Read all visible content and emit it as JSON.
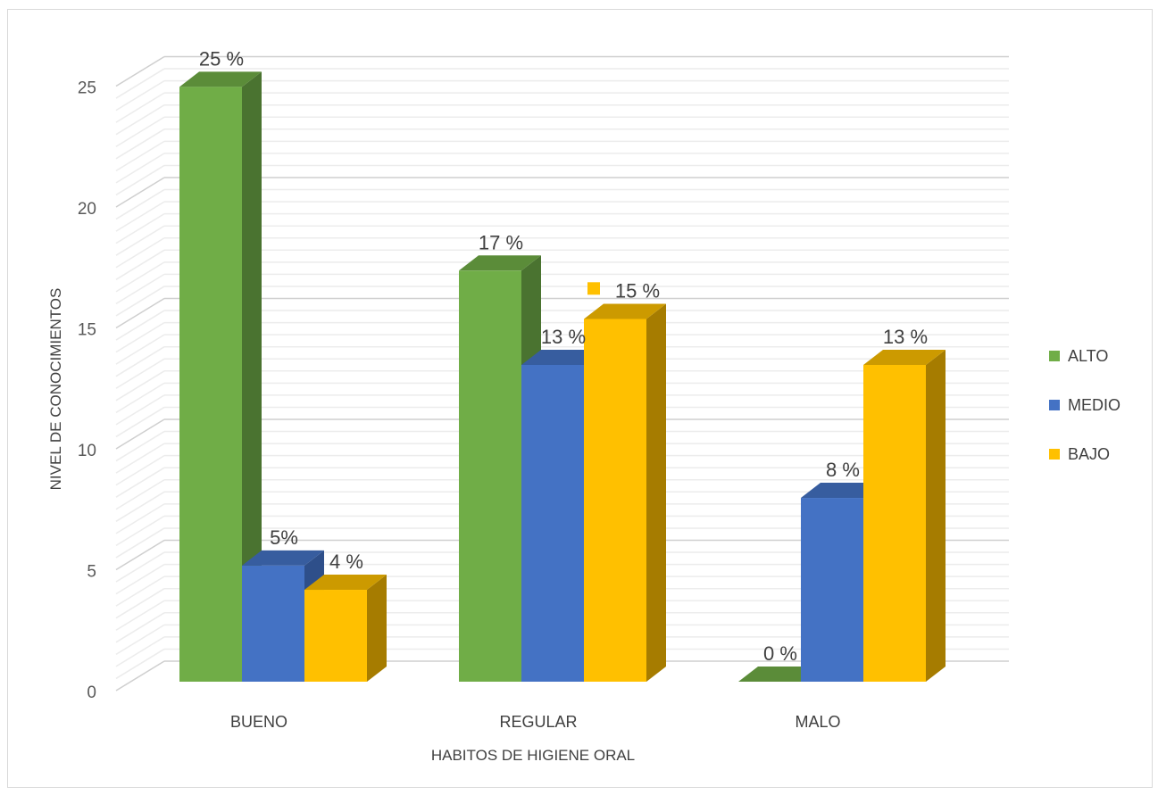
{
  "chart_data": {
    "type": "bar",
    "style": "3d-clustered-column",
    "categories": [
      "BUENO",
      "REGULAR",
      "MALO"
    ],
    "series": [
      {
        "name": "ALTO",
        "values": [
          24.6,
          17,
          0
        ],
        "labels": [
          "25 %",
          "17 %",
          "0 %"
        ],
        "color": "#70ad47",
        "side": "#4a7330",
        "top": "#5b8c39"
      },
      {
        "name": "MEDIO",
        "values": [
          4.8,
          13.1,
          7.6
        ],
        "labels": [
          "5%",
          "13 %",
          "8 %"
        ],
        "color": "#4472c4",
        "side": "#2e4f8a",
        "top": "#375d9f"
      },
      {
        "name": "BAJO",
        "values": [
          3.8,
          15,
          13.1
        ],
        "labels": [
          "4 %",
          "15 %",
          "13 %"
        ],
        "color": "#ffc000",
        "side": "#a67c00",
        "top": "#cc9a00"
      }
    ],
    "xlabel": "HABITOS DE HIGIENE ORAL",
    "ylabel": "NIVEL DE CONOCIMIENTOS",
    "ylim": [
      0,
      25
    ],
    "yticks": [
      0,
      5,
      10,
      15,
      20,
      25
    ],
    "grid": true,
    "legend_position": "right",
    "highlighted_label_series": "BAJO",
    "highlighted_label_category": "REGULAR"
  }
}
